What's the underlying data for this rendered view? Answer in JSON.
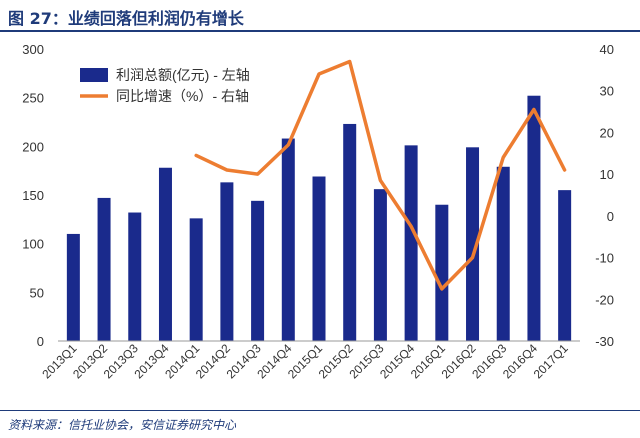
{
  "title": "图 27：业绩回落但利润仍有增长",
  "source": "资料来源：信托业协会，安信证券研究中心",
  "chart_data": {
    "type": "bar+line",
    "categories": [
      "2013Q1",
      "2013Q2",
      "2013Q3",
      "2013Q4",
      "2014Q1",
      "2014Q2",
      "2014Q3",
      "2014Q4",
      "2015Q1",
      "2015Q2",
      "2015Q3",
      "2015Q4",
      "2016Q1",
      "2016Q2",
      "2016Q3",
      "2016Q4",
      "2017Q1"
    ],
    "series": [
      {
        "name": "利润总额(亿元) - 左轴",
        "type": "bar",
        "axis": "left",
        "color": "#1a2a8c",
        "values": [
          110,
          147,
          132,
          178,
          126,
          163,
          144,
          208,
          169,
          223,
          156,
          201,
          140,
          199,
          179,
          252,
          155
        ]
      },
      {
        "name": "同比增速（%）- 右轴",
        "type": "line",
        "axis": "right",
        "color": "#ed7d31",
        "values": [
          null,
          null,
          null,
          null,
          14.5,
          11,
          10,
          17,
          34,
          37,
          8.5,
          -2.5,
          -17.5,
          -10,
          14,
          25.5,
          11
        ]
      }
    ],
    "y_left": {
      "ticks": [
        "0",
        "50",
        "100",
        "150",
        "200",
        "250",
        "300"
      ],
      "ylim": [
        0,
        300
      ]
    },
    "y_right": {
      "ticks": [
        "-30",
        "-20",
        "-10",
        "0",
        "10",
        "20",
        "30",
        "40"
      ],
      "ylim": [
        -30,
        40
      ]
    },
    "legend_position": "top-left"
  }
}
